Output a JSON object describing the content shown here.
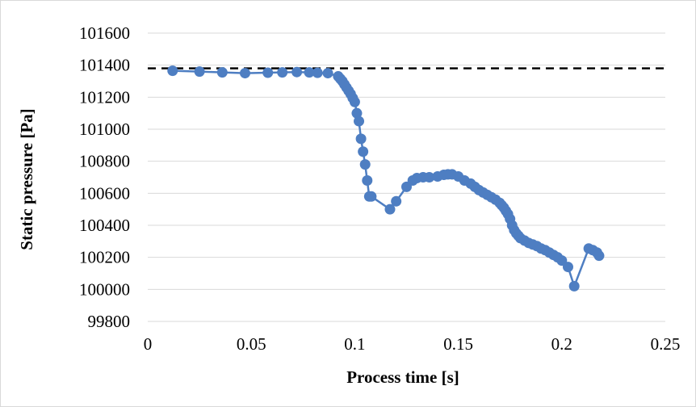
{
  "chart_data": {
    "type": "line",
    "title": "",
    "xlabel": "Process time [s]",
    "ylabel": "Static pressure [Pa]",
    "xlim": [
      0,
      0.25
    ],
    "ylim": [
      99800,
      101600
    ],
    "xticks": [
      0,
      0.05,
      0.1,
      0.15,
      0.2,
      0.25
    ],
    "xtick_labels": [
      "0",
      "0.05",
      "0.1",
      "0.15",
      "0.2",
      "0.25"
    ],
    "yticks": [
      99800,
      100000,
      100200,
      100400,
      100600,
      100800,
      101000,
      101200,
      101400,
      101600
    ],
    "ytick_labels": [
      "99800",
      "100000",
      "100200",
      "100400",
      "100600",
      "100800",
      "101000",
      "101200",
      "101400",
      "101600"
    ],
    "grid": "horizontal",
    "legend": "none",
    "reference_line": {
      "y": 101380,
      "style": "dashed",
      "color": "#000000"
    },
    "series": [
      {
        "color": "#4e7ec2",
        "marker": "circle",
        "x": [
          0.012,
          0.025,
          0.036,
          0.047,
          0.058,
          0.065,
          0.072,
          0.078,
          0.082,
          0.087,
          0.092,
          0.093,
          0.094,
          0.095,
          0.096,
          0.097,
          0.098,
          0.099,
          0.1,
          0.101,
          0.102,
          0.103,
          0.104,
          0.105,
          0.106,
          0.107,
          0.108,
          0.117,
          0.12,
          0.125,
          0.128,
          0.13,
          0.133,
          0.136,
          0.14,
          0.143,
          0.145,
          0.147,
          0.15,
          0.153,
          0.156,
          0.158,
          0.16,
          0.162,
          0.164,
          0.166,
          0.168,
          0.17,
          0.171,
          0.172,
          0.173,
          0.174,
          0.175,
          0.176,
          0.177,
          0.178,
          0.179,
          0.18,
          0.182,
          0.184,
          0.186,
          0.188,
          0.19,
          0.192,
          0.194,
          0.196,
          0.198,
          0.2,
          0.203,
          0.206,
          0.213,
          0.215,
          0.217,
          0.218
        ],
        "y": [
          101365,
          101360,
          101355,
          101350,
          101353,
          101355,
          101357,
          101355,
          101352,
          101350,
          101330,
          101315,
          101300,
          101280,
          101260,
          101240,
          101220,
          101195,
          101170,
          101100,
          101050,
          100940,
          100860,
          100780,
          100680,
          100580,
          100580,
          100500,
          100550,
          100640,
          100680,
          100695,
          100700,
          100700,
          100705,
          100715,
          100718,
          100718,
          100705,
          100680,
          100660,
          100640,
          100620,
          100605,
          100590,
          100575,
          100560,
          100540,
          100525,
          100510,
          100490,
          100470,
          100440,
          100400,
          100370,
          100350,
          100335,
          100320,
          100305,
          100290,
          100280,
          100270,
          100255,
          100245,
          100230,
          100215,
          100200,
          100180,
          100140,
          100020,
          100255,
          100245,
          100230,
          100210
        ]
      }
    ]
  }
}
